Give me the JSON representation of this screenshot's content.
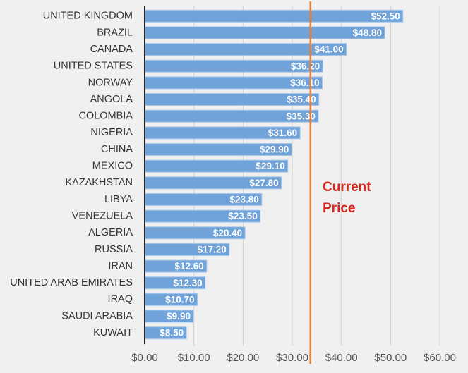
{
  "chart_data": {
    "type": "barh",
    "categories": [
      "UNITED KINGDOM",
      "BRAZIL",
      "CANADA",
      "UNITED STATES",
      "NORWAY",
      "ANGOLA",
      "COLOMBIA",
      "NIGERIA",
      "CHINA",
      "MEXICO",
      "KAZAKHSTAN",
      "LIBYA",
      "VENEZUELA",
      "ALGERIA",
      "RUSSIA",
      "IRAN",
      "UNITED ARAB EMIRATES",
      "IRAQ",
      "SAUDI ARABIA",
      "KUWAIT"
    ],
    "values": [
      52.5,
      48.8,
      41.0,
      36.2,
      36.1,
      35.4,
      35.3,
      31.6,
      29.9,
      29.1,
      27.8,
      23.8,
      23.5,
      20.4,
      17.2,
      12.6,
      12.3,
      10.7,
      9.9,
      8.5
    ],
    "value_labels": [
      "$52.50",
      "$48.80",
      "$41.00",
      "$36.20",
      "$36.10",
      "$35.40",
      "$35.30",
      "$31.60",
      "$29.90",
      "$29.10",
      "$27.80",
      "$23.80",
      "$23.50",
      "$20.40",
      "$17.20",
      "$12.60",
      "$12.30",
      "$10.70",
      "$9.90",
      "$8.50"
    ],
    "color": "#6fa3da",
    "xlim": [
      0,
      60
    ],
    "xticks": [
      {
        "value": 0,
        "label": "$0.00"
      },
      {
        "value": 10,
        "label": "$10.00"
      },
      {
        "value": 20,
        "label": "$20.00"
      },
      {
        "value": 30,
        "label": "$30.00"
      },
      {
        "value": 40,
        "label": "$40.00"
      },
      {
        "value": 50,
        "label": "$50.00"
      },
      {
        "value": 60,
        "label": "$60.00"
      }
    ],
    "grid": true,
    "reference_line": {
      "value": 33.7,
      "color": "#ed7d31",
      "label": [
        "Current",
        "Price"
      ]
    }
  }
}
